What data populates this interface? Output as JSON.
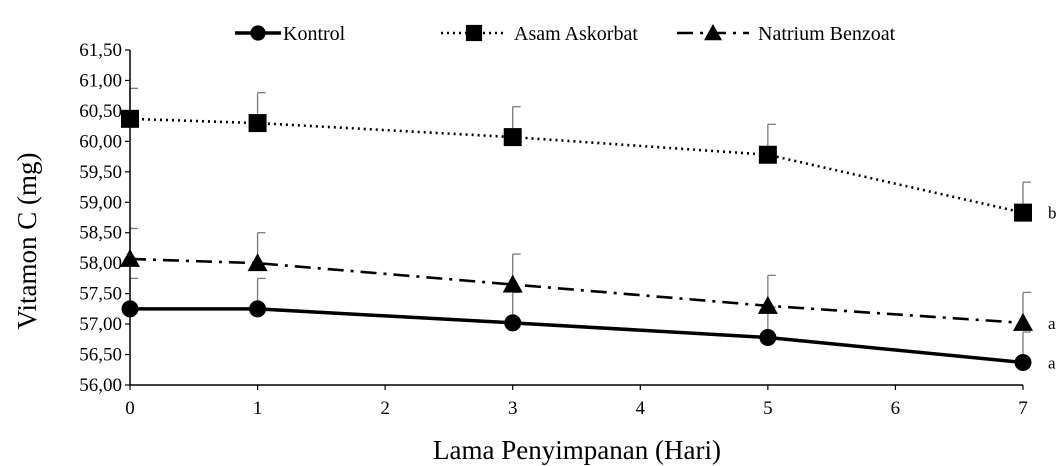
{
  "chart_data": {
    "type": "line",
    "xlabel": "Lama Penyimpanan (Hari)",
    "ylabel": "Vitamon C (mg)",
    "xlim": [
      0,
      7
    ],
    "ylim": [
      56.0,
      61.5
    ],
    "x_ticks": [
      0,
      1,
      2,
      3,
      4,
      5,
      6,
      7
    ],
    "x_tick_labels": [
      "0",
      "1",
      "2",
      "3",
      "4",
      "5",
      "6",
      "7"
    ],
    "y_ticks": [
      56.0,
      56.5,
      57.0,
      57.5,
      58.0,
      58.5,
      59.0,
      59.5,
      60.0,
      60.5,
      61.0,
      61.5
    ],
    "y_tick_labels": [
      "56,00",
      "56,50",
      "57,00",
      "57,50",
      "58,00",
      "58,50",
      "59,00",
      "59,50",
      "60,00",
      "60,50",
      "61,00",
      "61,50"
    ],
    "grid": false,
    "legend_position": "top",
    "series": [
      {
        "name": "Kontrol",
        "marker": "circle",
        "line_style": "solid",
        "color": "#000000",
        "x": [
          0,
          1,
          3,
          5,
          7
        ],
        "y": [
          57.25,
          57.25,
          57.02,
          56.78,
          56.37
        ],
        "error": [
          0.5,
          0.5,
          0.5,
          0.5,
          0.5
        ],
        "significance": "a"
      },
      {
        "name": "Asam Askorbat",
        "marker": "square",
        "line_style": "dotted",
        "color": "#000000",
        "x": [
          0,
          1,
          3,
          5,
          7
        ],
        "y": [
          60.37,
          60.3,
          60.07,
          59.78,
          58.83
        ],
        "error": [
          0.5,
          0.5,
          0.5,
          0.5,
          0.5
        ],
        "significance": "b"
      },
      {
        "name": "Natrium Benzoat",
        "marker": "triangle",
        "line_style": "dashdot",
        "color": "#000000",
        "x": [
          0,
          1,
          3,
          5,
          7
        ],
        "y": [
          58.07,
          58.0,
          57.65,
          57.3,
          57.02
        ],
        "error": [
          0.5,
          0.5,
          0.5,
          0.5,
          0.5
        ],
        "significance": "a"
      }
    ]
  }
}
